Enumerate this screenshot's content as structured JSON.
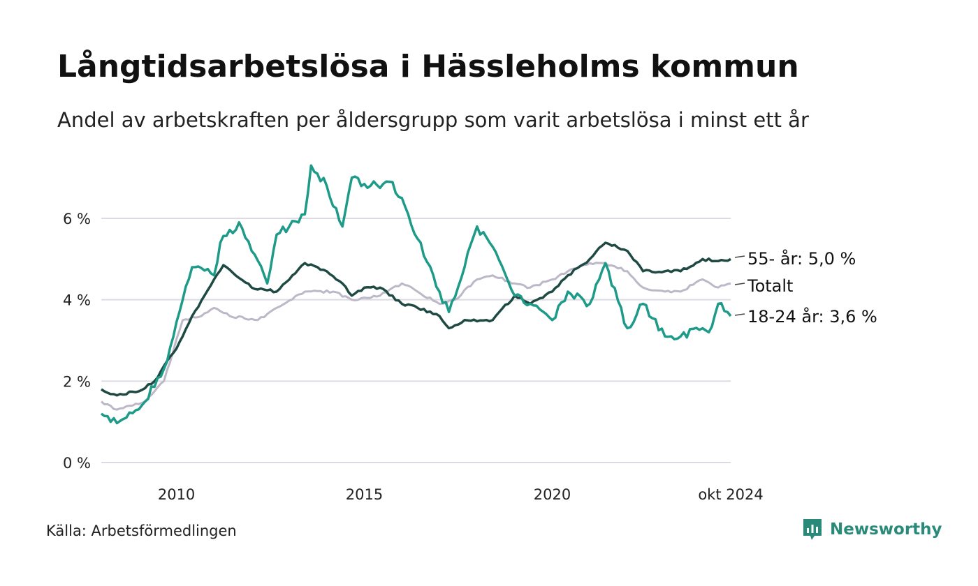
{
  "header": {
    "title": "Långtidsarbetslösa i Hässleholms kommun",
    "subtitle": "Andel av arbetskraften per åldersgrupp som varit arbetslösa i minst ett år"
  },
  "footer": {
    "source": "Källa: Arbetsförmedlingen",
    "brand": "Newsworthy"
  },
  "chart_data": {
    "type": "line",
    "x_start": "2008-01",
    "x_end": "2024-10",
    "x_ticks": [
      {
        "date": "2010-01",
        "label": "2010"
      },
      {
        "date": "2015-01",
        "label": "2015"
      },
      {
        "date": "2020-01",
        "label": "2020"
      },
      {
        "date": "2024-10",
        "label": "okt 2024"
      }
    ],
    "y_ticks": [
      {
        "value": 0,
        "label": "0 %"
      },
      {
        "value": 2,
        "label": "2 %"
      },
      {
        "value": 4,
        "label": "4 %"
      },
      {
        "value": 6,
        "label": "6 %"
      }
    ],
    "ylim": [
      0,
      7.4
    ],
    "grid": true,
    "series": [
      {
        "name": "Totalt",
        "end_label": "Totalt",
        "color": "#bdb8c8",
        "points": [
          [
            "2008-01",
            1.5
          ],
          [
            "2008-06",
            1.3
          ],
          [
            "2009-03",
            1.5
          ],
          [
            "2009-09",
            2.0
          ],
          [
            "2010-03",
            3.5
          ],
          [
            "2010-09",
            3.6
          ],
          [
            "2011-01",
            3.8
          ],
          [
            "2011-06",
            3.6
          ],
          [
            "2012-03",
            3.5
          ],
          [
            "2012-09",
            3.8
          ],
          [
            "2013-06",
            4.2
          ],
          [
            "2014-03",
            4.2
          ],
          [
            "2014-09",
            4.0
          ],
          [
            "2015-06",
            4.1
          ],
          [
            "2016-01",
            4.4
          ],
          [
            "2016-06",
            4.2
          ],
          [
            "2017-01",
            3.9
          ],
          [
            "2017-06",
            4.0
          ],
          [
            "2018-01",
            4.5
          ],
          [
            "2018-06",
            4.6
          ],
          [
            "2019-01",
            4.4
          ],
          [
            "2019-06",
            4.3
          ],
          [
            "2020-01",
            4.5
          ],
          [
            "2020-06",
            4.7
          ],
          [
            "2021-01",
            4.9
          ],
          [
            "2021-06",
            4.9
          ],
          [
            "2022-01",
            4.7
          ],
          [
            "2022-06",
            4.3
          ],
          [
            "2023-01",
            4.2
          ],
          [
            "2023-06",
            4.2
          ],
          [
            "2024-01",
            4.5
          ],
          [
            "2024-06",
            4.3
          ],
          [
            "2024-10",
            4.4
          ]
        ]
      },
      {
        "name": "55- år",
        "end_label": "55- år: 5,0 %",
        "color": "#1f4a44",
        "points": [
          [
            "2008-01",
            1.8
          ],
          [
            "2008-06",
            1.65
          ],
          [
            "2009-01",
            1.75
          ],
          [
            "2009-06",
            2.0
          ],
          [
            "2010-01",
            2.8
          ],
          [
            "2010-06",
            3.6
          ],
          [
            "2011-01",
            4.5
          ],
          [
            "2011-04",
            4.85
          ],
          [
            "2012-01",
            4.3
          ],
          [
            "2012-09",
            4.2
          ],
          [
            "2013-06",
            4.9
          ],
          [
            "2014-01",
            4.7
          ],
          [
            "2014-06",
            4.4
          ],
          [
            "2014-09",
            4.1
          ],
          [
            "2015-01",
            4.3
          ],
          [
            "2015-06",
            4.3
          ],
          [
            "2016-01",
            3.9
          ],
          [
            "2016-06",
            3.8
          ],
          [
            "2017-01",
            3.6
          ],
          [
            "2017-04",
            3.3
          ],
          [
            "2017-09",
            3.5
          ],
          [
            "2018-06",
            3.5
          ],
          [
            "2019-01",
            4.1
          ],
          [
            "2019-06",
            3.9
          ],
          [
            "2020-01",
            4.2
          ],
          [
            "2020-06",
            4.6
          ],
          [
            "2021-01",
            5.0
          ],
          [
            "2021-06",
            5.4
          ],
          [
            "2022-01",
            5.2
          ],
          [
            "2022-06",
            4.7
          ],
          [
            "2023-01",
            4.7
          ],
          [
            "2023-06",
            4.7
          ],
          [
            "2024-01",
            5.0
          ],
          [
            "2024-06",
            4.95
          ],
          [
            "2024-10",
            5.0
          ]
        ]
      },
      {
        "name": "18-24 år",
        "end_label": "18-24 år: 3,6 %",
        "color": "#1e9a88",
        "points": [
          [
            "2008-01",
            1.2
          ],
          [
            "2008-04",
            1.0
          ],
          [
            "2008-09",
            1.1
          ],
          [
            "2009-03",
            1.5
          ],
          [
            "2009-09",
            2.3
          ],
          [
            "2010-03",
            4.0
          ],
          [
            "2010-06",
            4.8
          ],
          [
            "2011-01",
            4.6
          ],
          [
            "2011-03",
            5.4
          ],
          [
            "2011-09",
            5.9
          ],
          [
            "2012-01",
            5.2
          ],
          [
            "2012-06",
            4.4
          ],
          [
            "2012-09",
            5.6
          ],
          [
            "2013-01",
            5.8
          ],
          [
            "2013-06",
            6.1
          ],
          [
            "2013-08",
            7.3
          ],
          [
            "2014-01",
            6.8
          ],
          [
            "2014-06",
            5.8
          ],
          [
            "2014-09",
            7.0
          ],
          [
            "2015-03",
            6.8
          ],
          [
            "2015-09",
            6.9
          ],
          [
            "2016-01",
            6.5
          ],
          [
            "2016-06",
            5.5
          ],
          [
            "2017-01",
            4.2
          ],
          [
            "2017-04",
            3.7
          ],
          [
            "2017-09",
            4.8
          ],
          [
            "2018-01",
            5.8
          ],
          [
            "2018-06",
            5.3
          ],
          [
            "2019-01",
            4.1
          ],
          [
            "2019-06",
            3.9
          ],
          [
            "2020-01",
            3.5
          ],
          [
            "2020-06",
            4.2
          ],
          [
            "2021-01",
            3.9
          ],
          [
            "2021-06",
            4.9
          ],
          [
            "2022-01",
            3.3
          ],
          [
            "2022-06",
            3.9
          ],
          [
            "2023-01",
            3.1
          ],
          [
            "2023-06",
            3.1
          ],
          [
            "2024-01",
            3.3
          ],
          [
            "2024-03",
            3.2
          ],
          [
            "2024-06",
            3.9
          ],
          [
            "2024-10",
            3.6
          ]
        ]
      }
    ]
  }
}
